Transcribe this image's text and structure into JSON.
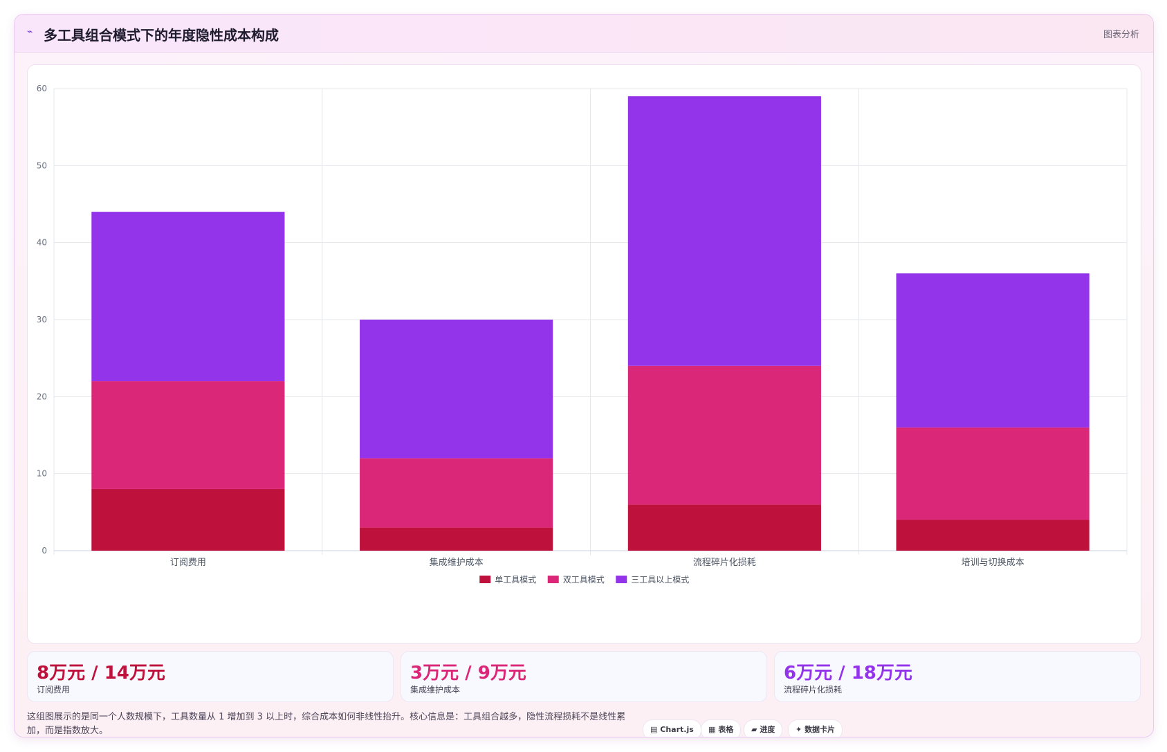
{
  "header": {
    "icon": "chart-line-icon",
    "title": "多工具组合模式下的年度隐性成本构成",
    "badge": "图表分析"
  },
  "chart_data": {
    "type": "bar",
    "stacked": true,
    "categories": [
      "订阅费用",
      "集成维护成本",
      "流程碎片化损耗",
      "培训与切换成本"
    ],
    "series": [
      {
        "name": "单工具模式",
        "values": [
          8,
          3,
          6,
          4
        ],
        "color": "#be123c"
      },
      {
        "name": "双工具模式",
        "values": [
          14,
          9,
          18,
          12
        ],
        "color": "#db2777"
      },
      {
        "name": "三工具以上模式",
        "values": [
          22,
          18,
          35,
          20
        ],
        "color": "#9333ea"
      }
    ],
    "ylim": [
      0,
      60
    ],
    "yticks": [
      0,
      10,
      20,
      30,
      40,
      50,
      60
    ],
    "grid": true,
    "legend": "bottom"
  },
  "stats": [
    {
      "value": "8万元 / 14万元",
      "label": "订阅费用",
      "color": "#be123c"
    },
    {
      "value": "3万元 / 9万元",
      "label": "集成维护成本",
      "color": "#db2777"
    },
    {
      "value": "6万元 / 18万元",
      "label": "流程碎片化损耗",
      "color": "#9333ea"
    }
  ],
  "note": "这组图展示的是同一个人数规模下，工具数量从 1 增加到 3 以上时，综合成本如何非线性抬升。核心信息是：工具组合越多，隐性流程损耗不是线性累加，而是指数放大。",
  "chips": [
    {
      "icon": "▤",
      "label": "Chart.js"
    },
    {
      "icon": "▦",
      "label": "表格"
    },
    {
      "icon": "▰",
      "label": "进度"
    },
    {
      "icon": "✦",
      "label": "数据卡片"
    }
  ]
}
